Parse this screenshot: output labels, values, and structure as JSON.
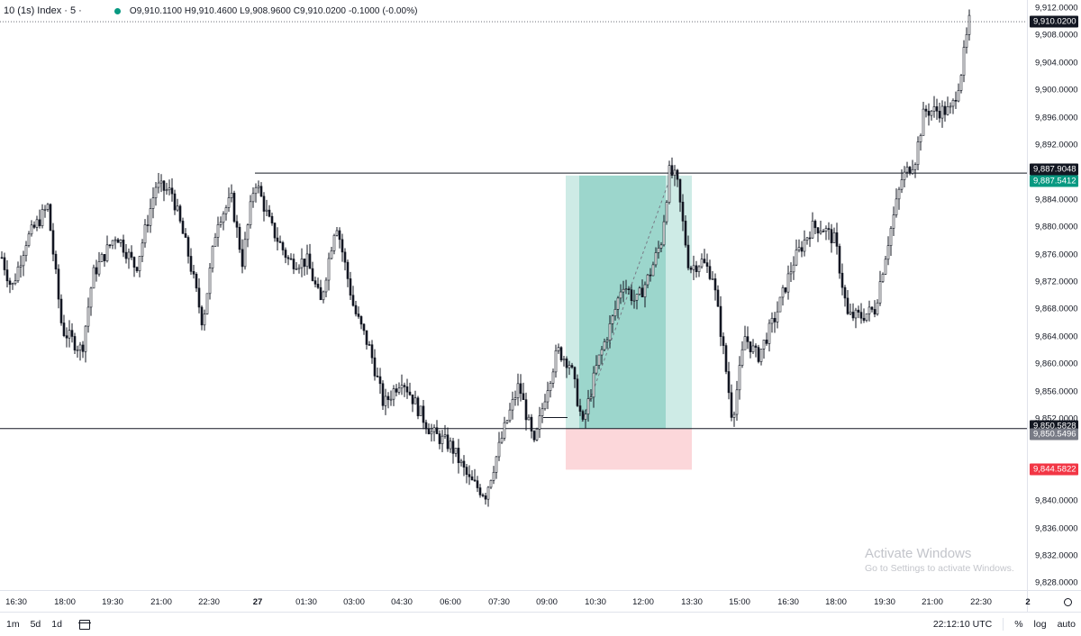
{
  "legend": {
    "symbol": "10 (1s) Index · 5 ·",
    "ohlc": "O9,910.1100  H9,910.4600  L9,908.9600  C9,910.0200  -0.1000  (-0.00%)"
  },
  "price_axis": {
    "ticks": [
      "9,912.0000",
      "9,908.0000",
      "9,904.0000",
      "9,900.0000",
      "9,896.0000",
      "9,892.0000",
      "9,884.0000",
      "9,880.0000",
      "9,876.0000",
      "9,872.0000",
      "9,868.0000",
      "9,864.0000",
      "9,860.0000",
      "9,856.0000",
      "9,852.0000",
      "9,840.0000",
      "9,836.0000",
      "9,832.0000",
      "9,828.0000"
    ],
    "tick_values": [
      9912,
      9908,
      9904,
      9900,
      9896,
      9892,
      9884,
      9880,
      9876,
      9872,
      9868,
      9864,
      9860,
      9856,
      9852,
      9840,
      9836,
      9832,
      9828
    ],
    "tags": [
      {
        "text": "9,910.0200",
        "value": 9910.02,
        "color": "#131722"
      },
      {
        "text": "9,887.9048",
        "value": 9887.9048,
        "color": "#131722"
      },
      {
        "text": "9,887.5412",
        "value": 9887.5412,
        "color": "#089981"
      },
      {
        "text": "9,850.5828",
        "value": 9850.5828,
        "color": "#131722"
      },
      {
        "text": "9,850.5496",
        "value": 9850.5496,
        "color": "#787b86"
      },
      {
        "text": "9,844.5822",
        "value": 9844.5822,
        "color": "#f23645"
      }
    ]
  },
  "time_axis": {
    "labels": [
      "16:30",
      "18:00",
      "19:30",
      "21:00",
      "22:30",
      "27",
      "01:30",
      "03:00",
      "04:30",
      "06:00",
      "07:30",
      "09:00",
      "10:30",
      "12:00",
      "13:30",
      "15:00",
      "16:30",
      "18:00",
      "19:30",
      "21:00",
      "22:30",
      "2"
    ]
  },
  "position": {
    "entry": 9850.5828,
    "take_profit": 9887.5412,
    "stop_loss": 9844.5822,
    "profit_color": "#089981",
    "loss_color": "#f23645"
  },
  "levels": {
    "resistance": 9887.9048,
    "support": 9850.5828
  },
  "bottom_bar": {
    "ranges": [
      "1m",
      "5d",
      "1d"
    ],
    "clock": "22:12:10 UTC",
    "percent": "%",
    "log": "log",
    "auto": "auto"
  },
  "watermark": {
    "title": "Activate Windows",
    "subtitle": "Go to Settings to activate Windows."
  },
  "colors": {
    "candle": "#131722",
    "grid": "#f0f3fa"
  }
}
